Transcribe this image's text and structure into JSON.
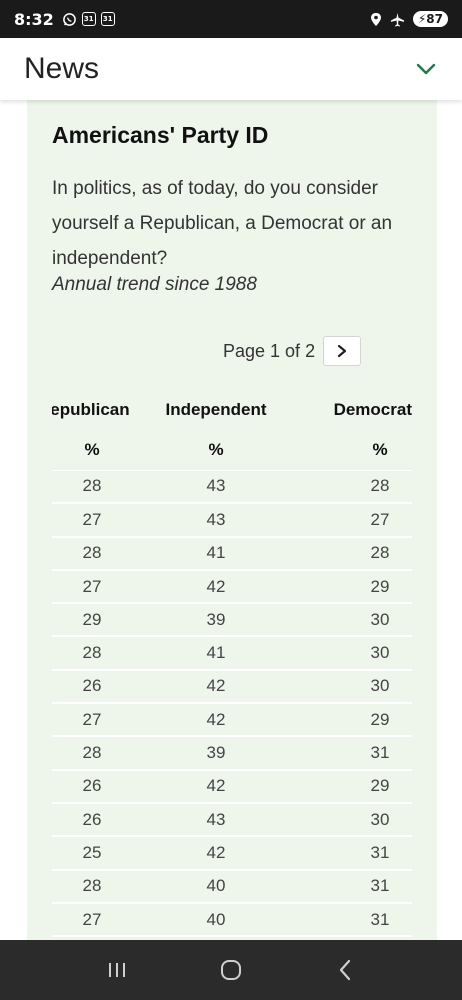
{
  "status_bar": {
    "time": "8:32",
    "calendar_day_1": "31",
    "calendar_day_2": "31",
    "battery": "87"
  },
  "header": {
    "title": "News"
  },
  "card": {
    "title": "Americans' Party ID",
    "question": "In politics, as of today, do you consider yourself a Republican, a Democrat or an independent?",
    "subtitle": "Annual trend since 1988"
  },
  "pager": {
    "text": "Page 1 of 2"
  },
  "table": {
    "headers": [
      "Republican",
      "Independent",
      "Democrat"
    ],
    "units": [
      "%",
      "%",
      "%"
    ],
    "rows": [
      [
        28,
        43,
        28
      ],
      [
        27,
        43,
        27
      ],
      [
        28,
        41,
        28
      ],
      [
        27,
        42,
        29
      ],
      [
        29,
        39,
        30
      ],
      [
        28,
        41,
        30
      ],
      [
        26,
        42,
        30
      ],
      [
        27,
        42,
        29
      ],
      [
        28,
        39,
        31
      ],
      [
        26,
        42,
        29
      ],
      [
        26,
        43,
        30
      ],
      [
        25,
        42,
        31
      ],
      [
        28,
        40,
        31
      ],
      [
        27,
        40,
        31
      ]
    ]
  },
  "colors": {
    "card_bg": "#eef6ec",
    "accent": "#1f7a4a",
    "status_bar": "#1a1a1a",
    "nav_bar": "#2b2b2b"
  }
}
